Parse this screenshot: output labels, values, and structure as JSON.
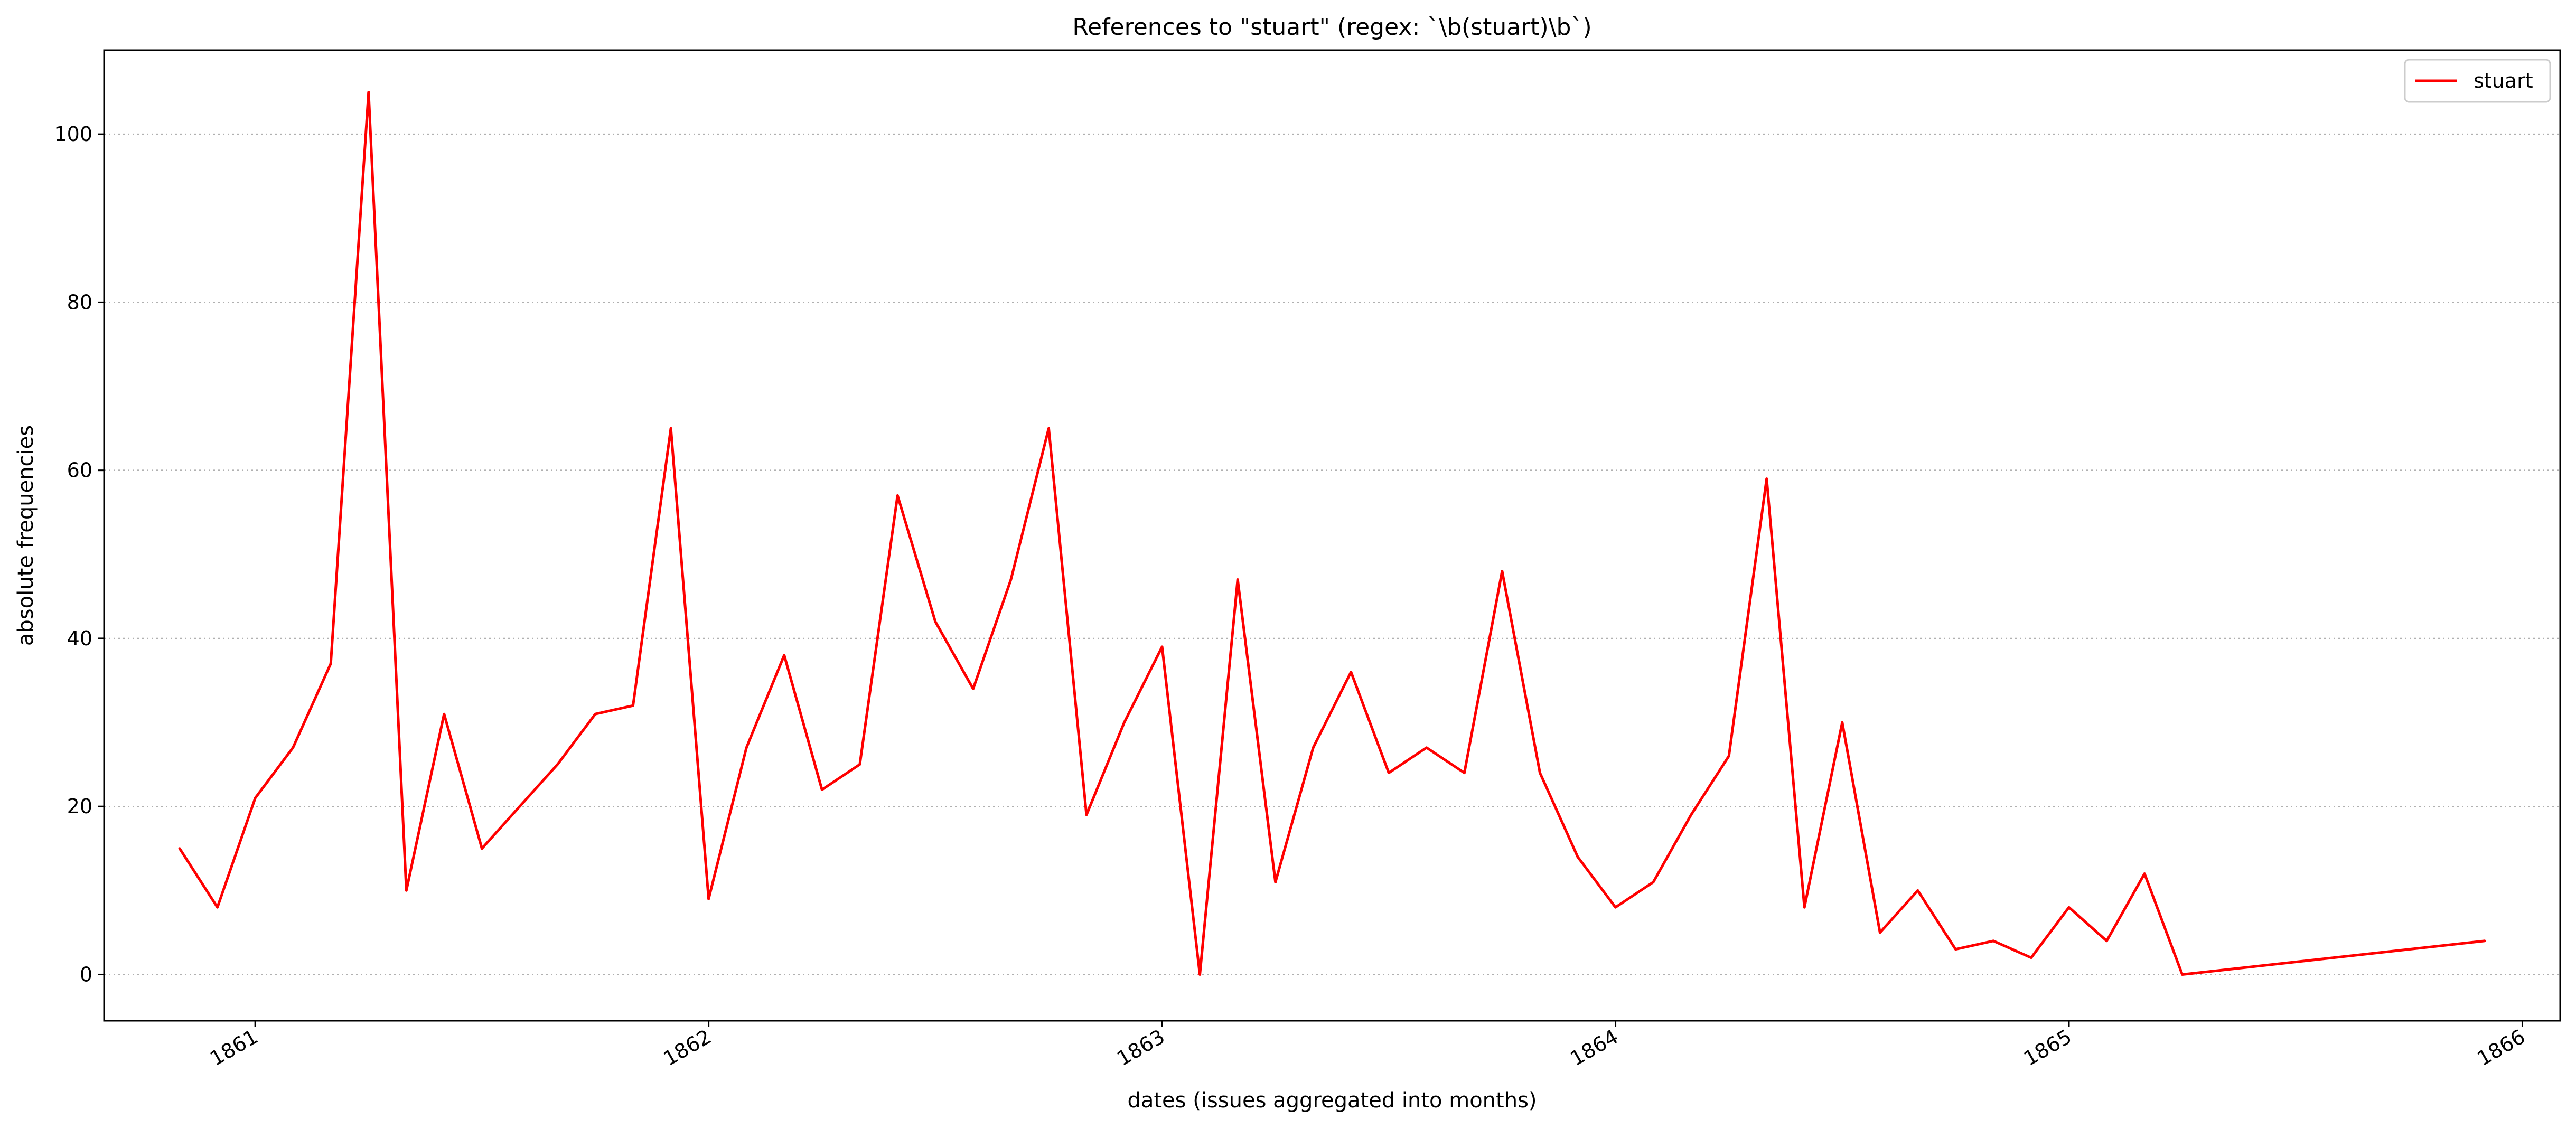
{
  "chart_data": {
    "type": "line",
    "title": "References to \"stuart\" (regex: `\\b(stuart)\\b`)",
    "xlabel": "dates (issues aggregated into months)",
    "ylabel": "absolute frequencies",
    "x_ticks": [
      "1861",
      "1862",
      "1863",
      "1864",
      "1865",
      "1866"
    ],
    "y_ticks": [
      "0",
      "20",
      "40",
      "60",
      "80",
      "100"
    ],
    "xlim": [
      "1860-09",
      "1866-02"
    ],
    "ylim": [
      -5.5,
      110
    ],
    "grid": "horizontal dotted",
    "legend_position": "top-right",
    "series": [
      {
        "name": "stuart",
        "color": "#ff0000",
        "x": [
          "1860-11",
          "1860-12",
          "1861-01",
          "1861-02",
          "1861-03",
          "1861-04",
          "1861-05",
          "1861-06",
          "1861-07",
          "1861-08",
          "1861-09",
          "1861-10",
          "1861-11",
          "1861-12",
          "1862-01",
          "1862-02",
          "1862-03",
          "1862-04",
          "1862-05",
          "1862-06",
          "1862-07",
          "1862-08",
          "1862-09",
          "1862-10",
          "1862-11",
          "1862-12",
          "1863-01",
          "1863-02",
          "1863-03",
          "1863-04",
          "1863-05",
          "1863-06",
          "1863-07",
          "1863-08",
          "1863-09",
          "1863-10",
          "1863-11",
          "1863-12",
          "1864-01",
          "1864-02",
          "1864-03",
          "1864-04",
          "1864-05",
          "1864-06",
          "1864-07",
          "1864-08",
          "1864-09",
          "1864-10",
          "1864-11",
          "1864-12",
          "1865-01",
          "1865-02",
          "1865-03",
          "1865-04",
          "1865-12"
        ],
        "values": [
          15,
          8,
          21,
          27,
          37,
          105,
          10,
          31,
          15,
          20,
          25,
          31,
          32,
          65,
          9,
          27,
          38,
          22,
          25,
          57,
          42,
          34,
          47,
          65,
          19,
          30,
          39,
          0,
          47,
          11,
          27,
          36,
          24,
          27,
          24,
          48,
          24,
          14,
          8,
          11,
          19,
          26,
          59,
          8,
          30,
          5,
          10,
          3,
          4,
          2,
          8,
          4,
          12,
          0,
          4
        ]
      }
    ]
  }
}
